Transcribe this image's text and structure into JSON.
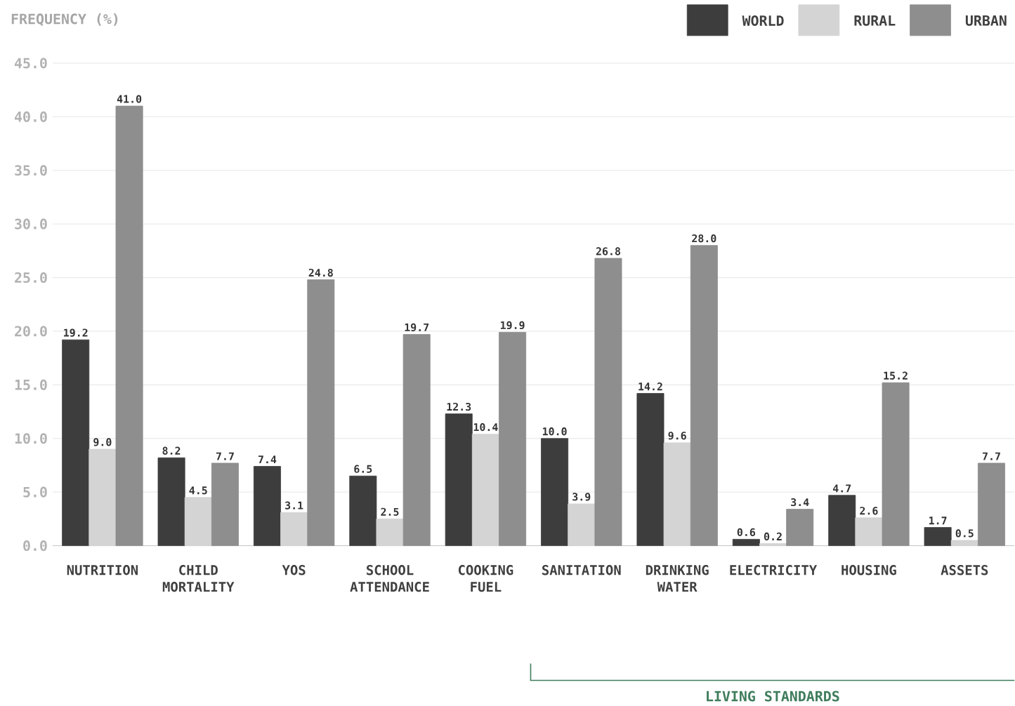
{
  "chart_data": {
    "type": "bar",
    "ylabel": "FREQUENCY (%)",
    "categories": [
      "NUTRITION",
      "CHILD MORTALITY",
      "YOS",
      "SCHOOL ATTENDANCE",
      "COOKING FUEL",
      "SANITATION",
      "DRINKING WATER",
      "ELECTRICITY",
      "HOUSING",
      "ASSETS"
    ],
    "series": [
      {
        "name": "WORLD",
        "color": "#3d3d3d",
        "values": [
          19.2,
          8.2,
          7.4,
          6.5,
          12.3,
          10.0,
          14.2,
          0.6,
          4.7,
          1.7
        ],
        "value_labels": [
          "19.2",
          "8.2",
          "7.4",
          "6.5",
          "12.3",
          "10.0",
          "14.2",
          "0.6",
          "4.7",
          "1.7"
        ]
      },
      {
        "name": "RURAL",
        "color": "#d4d4d4",
        "values": [
          9.0,
          4.5,
          3.1,
          2.5,
          10.4,
          3.9,
          9.6,
          0.2,
          2.6,
          0.5
        ],
        "value_labels": [
          "9.0",
          "4.5",
          "3.1",
          "2.5",
          "10.4",
          "3.9",
          "9.6",
          "0.2",
          "2.6",
          "0.5"
        ]
      },
      {
        "name": "URBAN",
        "color": "#8e8e8e",
        "values": [
          41.0,
          7.7,
          24.8,
          19.7,
          19.9,
          26.8,
          28.0,
          3.4,
          15.2,
          7.7
        ],
        "value_labels": [
          "41.0",
          "7.7",
          "24.8",
          "19.7",
          "19.9",
          "26.8",
          "28.0",
          "3.4",
          "15.2",
          "7.7"
        ]
      }
    ],
    "ylim": [
      0,
      45
    ],
    "yticks": [
      {
        "value": 0,
        "label": "0.0"
      },
      {
        "value": 5,
        "label": "5.0"
      },
      {
        "value": 10,
        "label": "10.0"
      },
      {
        "value": 15,
        "label": "15.0"
      },
      {
        "value": 20,
        "label": "20.0"
      },
      {
        "value": 25,
        "label": "25.0"
      },
      {
        "value": 30,
        "label": "30.0"
      },
      {
        "value": 35,
        "label": "35.0"
      },
      {
        "value": 40,
        "label": "40.0"
      },
      {
        "value": 45,
        "label": "45.0"
      }
    ],
    "grid": "y",
    "legend": "top right",
    "annotations": [
      "LIVING STANDARDS"
    ]
  }
}
